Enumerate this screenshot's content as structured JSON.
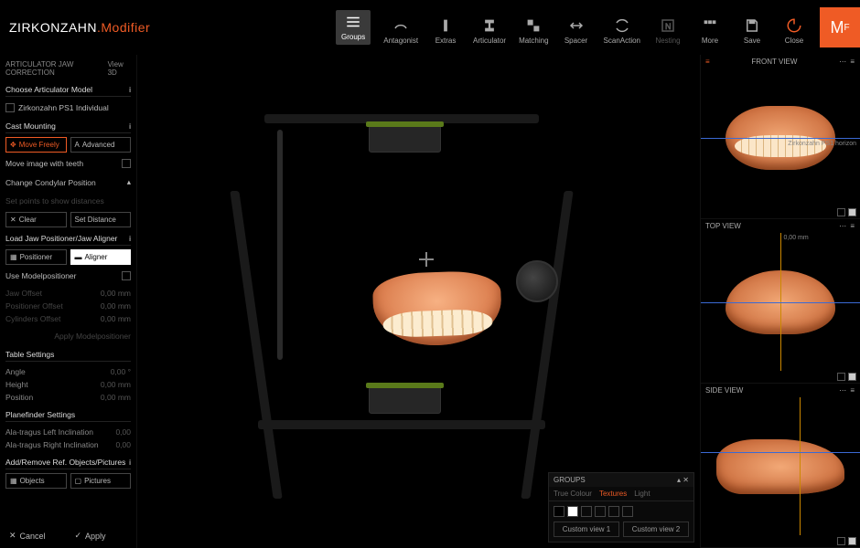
{
  "brand": {
    "main": "ZIRKONZAHN",
    "accent": ".Modifier"
  },
  "logo": "M",
  "logo_sub": "F",
  "toolbar": [
    {
      "id": "groups",
      "label": "Groups",
      "active": true
    },
    {
      "id": "antagonist",
      "label": "Antagonist"
    },
    {
      "id": "extras",
      "label": "Extras"
    },
    {
      "id": "articulator",
      "label": "Articulator"
    },
    {
      "id": "matching",
      "label": "Matching"
    },
    {
      "id": "spacer",
      "label": "Spacer"
    },
    {
      "id": "scanaction",
      "label": "ScanAction"
    },
    {
      "id": "nesting",
      "label": "Nesting",
      "muted": true
    },
    {
      "id": "more",
      "label": "More"
    },
    {
      "id": "save",
      "label": "Save"
    },
    {
      "id": "close",
      "label": "Close",
      "close": true
    }
  ],
  "sidebar": {
    "header": "ARTICULATOR JAW CORRECTION",
    "view_label": "View 3D",
    "sections": {
      "choose_model": {
        "title": "Choose Articulator Model",
        "item": "Zirkonzahn PS1 Individual"
      },
      "cast_mounting": {
        "title": "Cast Mounting",
        "move_freely": "Move Freely",
        "advanced": "Advanced",
        "move_image": "Move image with teeth",
        "change_condylar": "Change Condylar Position",
        "set_points": "Set points to show distances",
        "clear": "Clear",
        "set_distance": "Set Distance"
      },
      "load_jaw": {
        "title": "Load Jaw Positioner/Jaw Aligner",
        "positioner": "Positioner",
        "aligner": "Aligner",
        "use_model": "Use Modelpositioner",
        "rows": [
          {
            "label": "Jaw Offset",
            "val": "0,00",
            "unit": "mm"
          },
          {
            "label": "Positioner Offset",
            "val": "0,00",
            "unit": "mm"
          },
          {
            "label": "Cylinders Offset",
            "val": "0,00",
            "unit": "mm"
          }
        ],
        "apply": "Apply Modelpositioner"
      },
      "table": {
        "title": "Table Settings",
        "rows": [
          {
            "label": "Angle",
            "val": "0,00",
            "unit": "°"
          },
          {
            "label": "Height",
            "val": "0,00",
            "unit": "mm"
          },
          {
            "label": "Position",
            "val": "0,00",
            "unit": "mm"
          }
        ]
      },
      "planefinder": {
        "title": "Planefinder Settings",
        "rows": [
          {
            "label": "Ala-tragus Left Inclination",
            "val": "0,00",
            "unit": ""
          },
          {
            "label": "Ala-tragus Right Inclination",
            "val": "0,00",
            "unit": ""
          }
        ]
      },
      "addremove": {
        "title": "Add/Remove Ref. Objects/Pictures",
        "objects": "Objects",
        "pictures": "Pictures"
      }
    },
    "footer": {
      "cancel": "Cancel",
      "apply": "Apply"
    }
  },
  "groups_panel": {
    "title": "GROUPS",
    "tabs": [
      "True Colour",
      "Textures",
      "Light"
    ],
    "active_tab": 1,
    "custom1": "Custom view 1",
    "custom2": "Custom view 2"
  },
  "right_views": {
    "front": {
      "label": "FRONT VIEW",
      "axis_label": "Zirkonzahn PS1 horizon"
    },
    "top": {
      "label": "TOP VIEW",
      "measure": "0,00 mm"
    },
    "side": {
      "label": "SIDE VIEW"
    }
  },
  "colors": {
    "accent": "#ef5b25",
    "bg": "#000000"
  }
}
